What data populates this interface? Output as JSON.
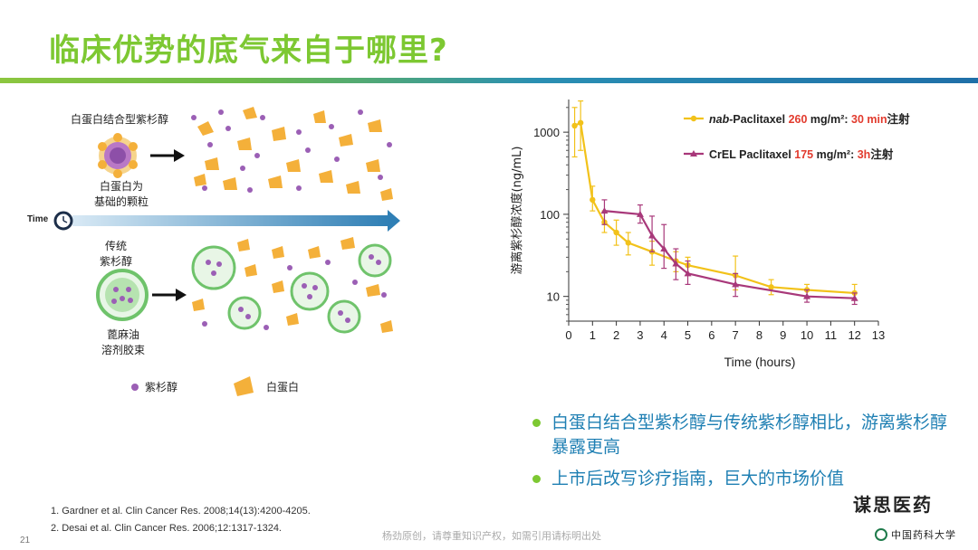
{
  "slide": {
    "title": "临床优势的底气来自于哪里?",
    "page_number": "21",
    "footer_note": "杨劲原创，请尊重知识产权，如需引用请标明出处",
    "signature": "谋思医药",
    "logo_text": "中国药科大学"
  },
  "illustration": {
    "label_top": "白蛋白结合型紫杉醇",
    "label_albumin_particle": [
      "白蛋白为",
      "基础的颗粒"
    ],
    "time_label": "Time",
    "label_traditional": [
      "传统",
      "紫杉醇"
    ],
    "label_micelle": [
      "蓖麻油",
      "溶剂胶束"
    ],
    "legend_paclitaxel": "紫杉醇",
    "legend_albumin": "白蛋白",
    "colors": {
      "paclitaxel": "#9b5fb5",
      "albumin": "#f4b03a",
      "micelle": "#6fc36b",
      "arrow": "#2f7fb5"
    }
  },
  "chart_data": {
    "type": "line",
    "xlabel": "Time (hours)",
    "ylabel": "游离紫杉醇浓度(ng/mL)",
    "x_scale": "linear",
    "y_scale": "log",
    "xlim": [
      0,
      13
    ],
    "ylim": [
      5,
      2500
    ],
    "x_ticks": [
      0,
      1,
      2,
      3,
      4,
      5,
      6,
      7,
      8,
      9,
      10,
      11,
      12,
      13
    ],
    "y_ticks": [
      10,
      100,
      1000
    ],
    "y_tick_labels": [
      "10",
      "100",
      "1000"
    ],
    "legend_position": "top-right",
    "series": [
      {
        "legend_prefix": "nab",
        "legend_name": "-Paclitaxel ",
        "legend_dose": "260",
        "legend_unit": " mg/m²: ",
        "legend_duration": "30 min",
        "legend_suffix": "注射",
        "color": "#f2c21a",
        "marker": "circle",
        "x": [
          0.25,
          0.5,
          1,
          1.5,
          2,
          2.5,
          3.5,
          4.5,
          5,
          7,
          8.5,
          10,
          12
        ],
        "y": [
          1200,
          1300,
          150,
          80,
          60,
          45,
          35,
          27,
          24,
          18,
          13,
          12,
          11
        ],
        "err_low": [
          500,
          600,
          110,
          60,
          42,
          32,
          24,
          20,
          18,
          12,
          10.5,
          10,
          9
        ],
        "err_high": [
          2000,
          2400,
          220,
          110,
          85,
          60,
          47,
          35,
          30,
          31,
          16,
          14,
          14
        ]
      },
      {
        "legend_prefix": "",
        "legend_name": "CrEL Paclitaxel ",
        "legend_dose": "175",
        "legend_unit": " mg/m²: ",
        "legend_duration": "3h",
        "legend_suffix": "注射",
        "color": "#a8387a",
        "marker": "triangle",
        "x": [
          1.5,
          3,
          3.5,
          4,
          4.5,
          5,
          7,
          10,
          12
        ],
        "y": [
          110,
          100,
          55,
          38,
          25,
          19,
          14,
          10,
          9.5
        ],
        "err_low": [
          75,
          78,
          35,
          22,
          16,
          14,
          10,
          8.5,
          8
        ],
        "err_high": [
          150,
          130,
          95,
          75,
          38,
          27,
          19,
          12,
          11
        ]
      }
    ]
  },
  "bullets": [
    "白蛋白结合型紫杉醇与传统紫杉醇相比，游离紫杉醇暴露更高",
    "上市后改写诊疗指南，巨大的市场价值"
  ],
  "references": [
    "1. Gardner et al. Clin Cancer Res. 2008;14(13):4200-4205.",
    "2. Desai et al. Clin Cancer Res. 2006;12:1317-1324."
  ]
}
